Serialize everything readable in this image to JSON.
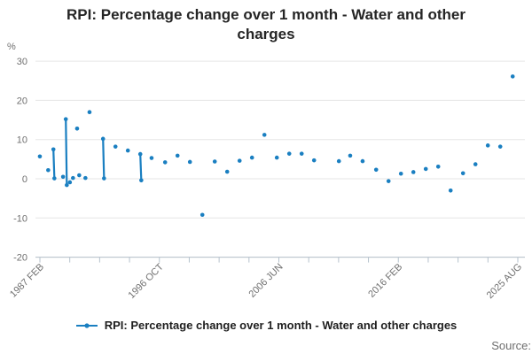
{
  "title": {
    "text": "RPI: Percentage change over 1 month - Water and other charges",
    "line1": "RPI: Percentage change over 1 month - Water and other",
    "line2": "charges"
  },
  "legend": {
    "label": "RPI: Percentage change over 1 month - Water and other charges"
  },
  "source_label": "Source:",
  "colors": {
    "series": "#1a7fc1",
    "grid": "#e6e6e6",
    "axis": "#b6c2cd",
    "title_text": "#252525",
    "muted_text": "#707070"
  },
  "y_axis": {
    "unit_label": "%",
    "ticks": [
      30,
      20,
      10,
      0,
      -10,
      -20
    ],
    "min": -20,
    "max": 30
  },
  "x_axis": {
    "tick_count": 17,
    "label_every": 4,
    "labels": [
      "1987 FEB",
      "1996 OCT",
      "2006 JUN",
      "2016 FEB",
      "2025 AUG"
    ]
  },
  "chart_data": {
    "type": "line",
    "title": "RPI: Percentage change over 1 month - Water and other charges",
    "xlabel": "",
    "ylabel": "%",
    "ylim": [
      -20,
      30
    ],
    "xlim_years": [
      1987.083,
      2025.583
    ],
    "x_tick_labels": [
      "1987 FEB",
      "1996 OCT",
      "2006 JUN",
      "2016 FEB",
      "2025 AUG"
    ],
    "y_ticks": [
      30,
      20,
      10,
      0,
      -10,
      -20
    ],
    "grid": "horizontal",
    "legend_position": "bottom",
    "note": "points are [decimal_year, percent_change]; points inside the same group are consecutive months and drawn connected",
    "series": [
      {
        "name": "RPI: Percentage change over 1 month - Water and other charges",
        "marker": "circle",
        "groups": [
          [
            [
              1987.08,
              5.7
            ]
          ],
          [
            [
              1987.75,
              2.2
            ]
          ],
          [
            [
              1988.17,
              7.5
            ],
            [
              1988.25,
              0.1
            ]
          ],
          [
            [
              1988.95,
              0.5
            ]
          ],
          [
            [
              1989.17,
              15.2
            ],
            [
              1989.25,
              -1.6
            ]
          ],
          [
            [
              1989.5,
              -0.9
            ]
          ],
          [
            [
              1989.75,
              0.2
            ]
          ],
          [
            [
              1990.08,
              12.8
            ]
          ],
          [
            [
              1990.25,
              0.9
            ]
          ],
          [
            [
              1990.75,
              0.2
            ]
          ],
          [
            [
              1991.08,
              17.0
            ]
          ],
          [
            [
              1992.17,
              10.2
            ],
            [
              1992.25,
              0.1
            ]
          ],
          [
            [
              1993.17,
              8.2
            ]
          ],
          [
            [
              1994.17,
              7.2
            ]
          ],
          [
            [
              1995.17,
              6.3
            ],
            [
              1995.25,
              -0.4
            ]
          ],
          [
            [
              1996.08,
              5.3
            ]
          ],
          [
            [
              1997.17,
              4.2
            ]
          ],
          [
            [
              1998.17,
              5.9
            ]
          ],
          [
            [
              1999.17,
              4.3
            ]
          ],
          [
            [
              2000.17,
              -9.2
            ]
          ],
          [
            [
              2001.17,
              4.4
            ]
          ],
          [
            [
              2002.17,
              1.8
            ]
          ],
          [
            [
              2003.17,
              4.6
            ]
          ],
          [
            [
              2004.17,
              5.4
            ]
          ],
          [
            [
              2005.17,
              11.2
            ]
          ],
          [
            [
              2006.17,
              5.4
            ]
          ],
          [
            [
              2007.17,
              6.4
            ]
          ],
          [
            [
              2008.17,
              6.4
            ]
          ],
          [
            [
              2009.17,
              4.7
            ]
          ],
          [
            [
              2011.17,
              4.5
            ]
          ],
          [
            [
              2012.08,
              5.9
            ]
          ],
          [
            [
              2013.08,
              4.5
            ]
          ],
          [
            [
              2014.17,
              2.3
            ]
          ],
          [
            [
              2015.17,
              -0.6
            ]
          ],
          [
            [
              2016.17,
              1.3
            ]
          ],
          [
            [
              2017.17,
              1.7
            ]
          ],
          [
            [
              2018.17,
              2.5
            ]
          ],
          [
            [
              2019.17,
              3.1
            ]
          ],
          [
            [
              2020.17,
              -3.0
            ]
          ],
          [
            [
              2021.17,
              1.4
            ]
          ],
          [
            [
              2022.17,
              3.7
            ]
          ],
          [
            [
              2023.17,
              8.5
            ]
          ],
          [
            [
              2024.17,
              8.2
            ]
          ],
          [
            [
              2025.17,
              26.1
            ]
          ]
        ]
      }
    ]
  }
}
